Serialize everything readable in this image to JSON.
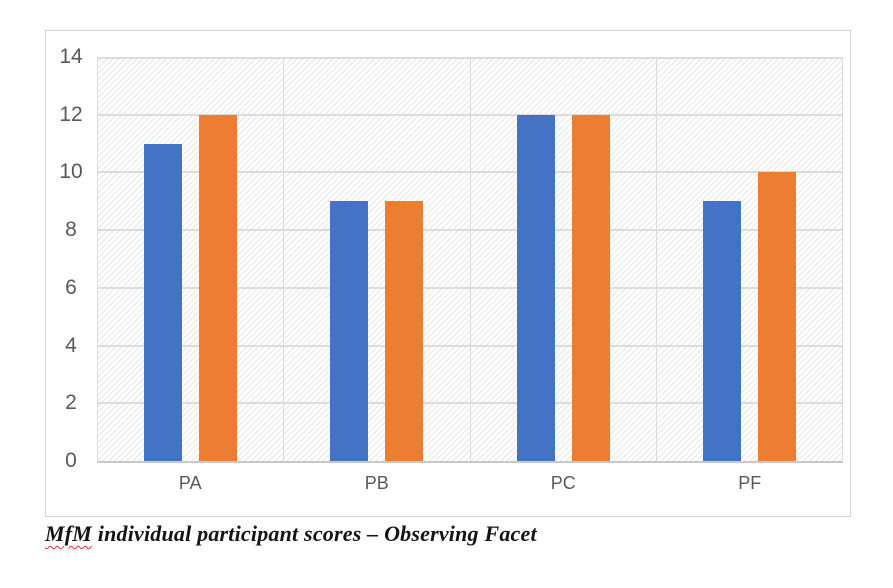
{
  "chart_data": {
    "type": "bar",
    "title": "",
    "categories": [
      "PA",
      "PB",
      "PC",
      "PF"
    ],
    "series": [
      {
        "name": "series-1",
        "color": "#4472C4",
        "values": [
          11,
          9,
          12,
          9
        ]
      },
      {
        "name": "series-2",
        "color": "#ED7D31",
        "values": [
          12,
          9,
          12,
          10
        ]
      }
    ],
    "xlabel": "",
    "ylabel": "",
    "ylim": [
      0,
      14
    ],
    "yticks": [
      0,
      2,
      4,
      6,
      8,
      10,
      12,
      14
    ],
    "legend": "none",
    "grid": "horizontal gridlines + vertical category boundaries",
    "plot_background": "light-gray diagonal hatch"
  },
  "figure": {
    "caption": {
      "word_flagged": "MfM",
      "rest": " individual participant scores – Observing Facet",
      "full": "MfM individual participant scores – Observing Facet"
    }
  },
  "style": {
    "axis_text_color": "#595959",
    "gridline_color": "#DCDCDC",
    "axis_line_color": "#C8C8C8",
    "frame_border_color": "#D2D2D2",
    "hatch_color": "#ECECEC",
    "squiggle_color": "#E0312E"
  }
}
